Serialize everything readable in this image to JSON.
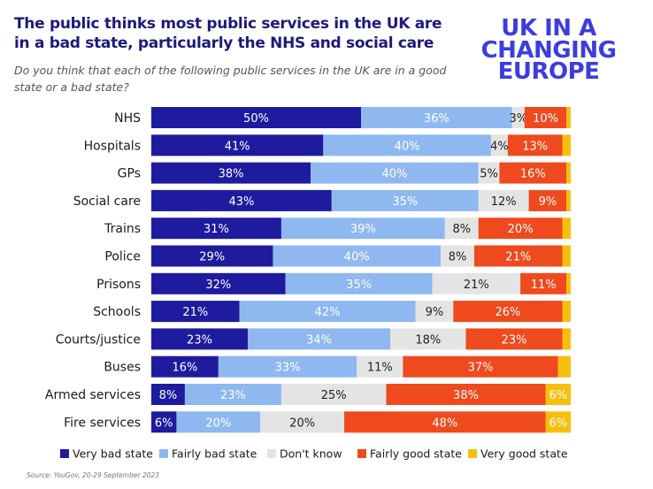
{
  "header": {
    "title": "The public thinks most public services in the UK are in a bad state, particularly the NHS and social care",
    "subtitle": "Do you think that each of the following public services in the UK are in a good state or a bad state?",
    "logo_lines": [
      "UK IN A",
      "CHANGING",
      "EUROPE"
    ]
  },
  "source": "Source: YouGov, 20-29 September 2023",
  "chart_data": {
    "type": "bar",
    "orientation": "horizontal",
    "stacked": true,
    "value_format": "percent",
    "legend_position": "bottom",
    "categories": [
      "NHS",
      "Hospitals",
      "GPs",
      "Social care",
      "Trains",
      "Police",
      "Prisons",
      "Schools",
      "Courts/justice",
      "Buses",
      "Armed services",
      "Fire services"
    ],
    "series": [
      {
        "name": "Very bad state",
        "color": "#1e1b9e",
        "label_color": "#ffffff",
        "values": [
          50,
          41,
          38,
          43,
          31,
          29,
          32,
          21,
          23,
          16,
          8,
          6
        ],
        "labels": [
          "50%",
          "41%",
          "38%",
          "43%",
          "31%",
          "29%",
          "32%",
          "21%",
          "23%",
          "16%",
          "8%",
          "6%"
        ]
      },
      {
        "name": "Fairly bad state",
        "color": "#8eb8ef",
        "label_color": "#ffffff",
        "values": [
          36,
          40,
          40,
          35,
          39,
          40,
          35,
          42,
          34,
          33,
          23,
          20
        ],
        "labels": [
          "36%",
          "40%",
          "40%",
          "35%",
          "39%",
          "40%",
          "35%",
          "42%",
          "34%",
          "33%",
          "23%",
          "20%"
        ]
      },
      {
        "name": "Don't know",
        "color": "#e4e4e4",
        "label_color": "#222222",
        "values": [
          3,
          4,
          5,
          12,
          8,
          8,
          21,
          9,
          18,
          11,
          25,
          20
        ],
        "labels": [
          "3%",
          "4%",
          "5%",
          "12%",
          "8%",
          "8%",
          "21%",
          "9%",
          "18%",
          "11%",
          "25%",
          "20%"
        ]
      },
      {
        "name": "Fairly good state",
        "color": "#ee4a1d",
        "label_color": "#ffffff",
        "values": [
          10,
          13,
          16,
          9,
          20,
          21,
          11,
          26,
          23,
          37,
          38,
          48
        ],
        "labels": [
          "10%",
          "13%",
          "16%",
          "9%",
          "20%",
          "21%",
          "11%",
          "26%",
          "23%",
          "37%",
          "38%",
          "48%"
        ]
      },
      {
        "name": "Very good state",
        "color": "#f6bf0f",
        "label_color": "#ffffff",
        "values": [
          1,
          2,
          1,
          1,
          2,
          2,
          1,
          2,
          2,
          3,
          6,
          6
        ],
        "labels": [
          "",
          "",
          "",
          "",
          "",
          "",
          "",
          "",
          "",
          "",
          "6%",
          "6%"
        ]
      }
    ]
  }
}
